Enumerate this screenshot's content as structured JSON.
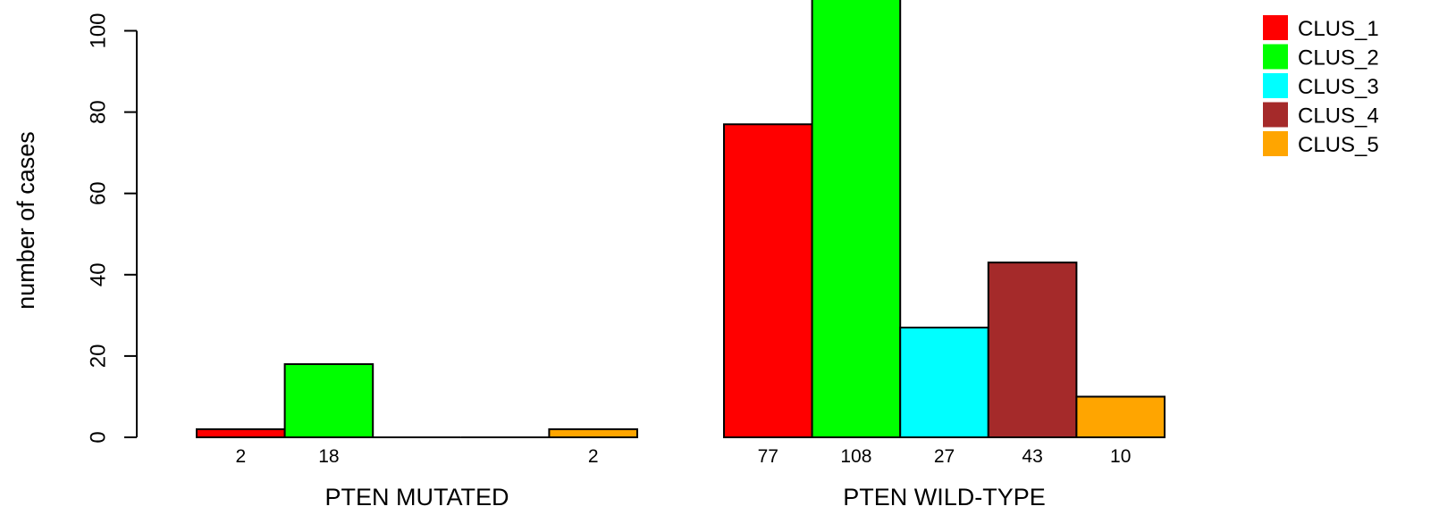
{
  "chart_data": {
    "type": "bar",
    "ylabel": "number of cases",
    "xlabel": "",
    "ylim": [
      0,
      100
    ],
    "yticks": [
      0,
      20,
      40,
      60,
      80,
      100
    ],
    "grid": false,
    "legend_position": "top-right",
    "groups": [
      {
        "label": "PTEN MUTATED",
        "values": [
          2,
          18,
          0,
          0,
          2
        ],
        "bar_labels": [
          "2",
          "18",
          "",
          "",
          "2"
        ]
      },
      {
        "label": "PTEN WILD-TYPE",
        "values": [
          77,
          108,
          27,
          43,
          10
        ],
        "bar_labels": [
          "77",
          "108",
          "27",
          "43",
          "10"
        ]
      }
    ],
    "series": [
      {
        "name": "CLUS_1",
        "color": "#ff0000"
      },
      {
        "name": "CLUS_2",
        "color": "#00ff00"
      },
      {
        "name": "CLUS_3",
        "color": "#00ffff"
      },
      {
        "name": "CLUS_4",
        "color": "#a52a2a"
      },
      {
        "name": "CLUS_5",
        "color": "#ffa500"
      }
    ]
  }
}
